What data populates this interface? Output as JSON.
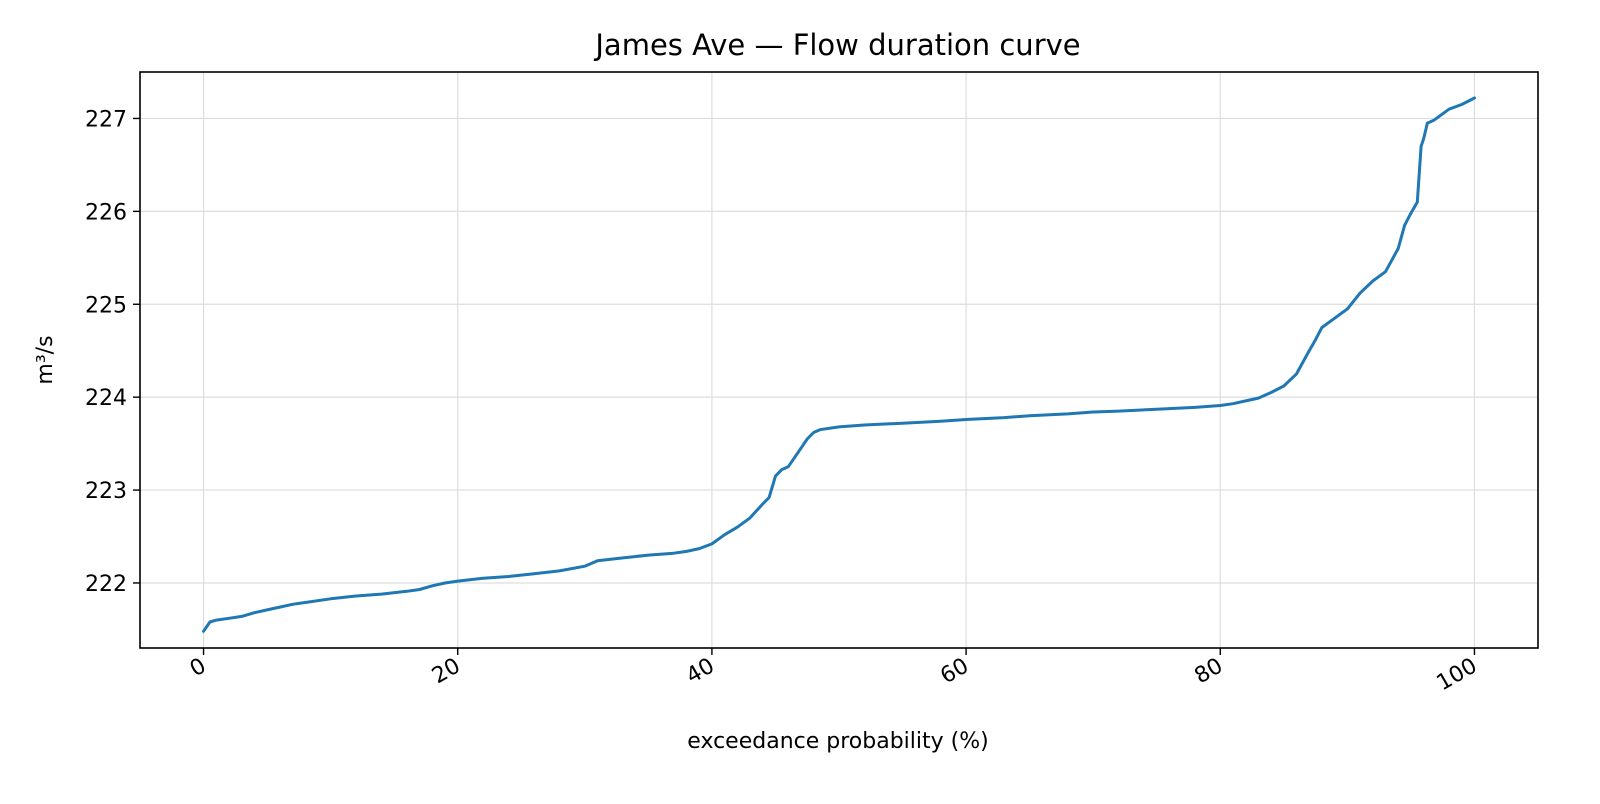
{
  "chart_data": {
    "type": "line",
    "title": "James Ave — Flow duration curve",
    "xlabel": "exceedance probability (%)",
    "ylabel": "m³/s",
    "xlim": [
      -5,
      105
    ],
    "ylim": [
      221.3,
      227.5
    ],
    "x_ticks": [
      0,
      20,
      40,
      60,
      80,
      100
    ],
    "x_tick_labels": [
      "0",
      "20",
      "40",
      "60",
      "80",
      "100"
    ],
    "y_ticks": [
      222,
      223,
      224,
      225,
      226,
      227
    ],
    "y_tick_labels": [
      "222",
      "223",
      "224",
      "225",
      "226",
      "227"
    ],
    "grid": true,
    "series": [
      {
        "color": "#1f77b4",
        "x": [
          0,
          0.5,
          1,
          2,
          3,
          4,
          5,
          6,
          7,
          8,
          10,
          12,
          14,
          16,
          17,
          18,
          19,
          20,
          22,
          24,
          26,
          28,
          30,
          31,
          33,
          35,
          37,
          38,
          39,
          40,
          41,
          42,
          43,
          44,
          44.5,
          45,
          45.5,
          46,
          47,
          47.5,
          48,
          48.5,
          50,
          52,
          55,
          58,
          60,
          63,
          65,
          68,
          70,
          72,
          75,
          78,
          80,
          81,
          82,
          83,
          84,
          85,
          86,
          87,
          87.5,
          88,
          89,
          90,
          91,
          92,
          93,
          94,
          94.5,
          95,
          95.5,
          95.8,
          96,
          96.3,
          96.8,
          97.5,
          98,
          99,
          100
        ],
        "values": [
          221.48,
          221.58,
          221.6,
          221.62,
          221.64,
          221.68,
          221.71,
          221.74,
          221.77,
          221.79,
          221.83,
          221.86,
          221.88,
          221.91,
          221.93,
          221.97,
          222.0,
          222.02,
          222.05,
          222.07,
          222.1,
          222.13,
          222.18,
          222.24,
          222.27,
          222.3,
          222.32,
          222.34,
          222.37,
          222.42,
          222.52,
          222.6,
          222.7,
          222.85,
          222.92,
          223.15,
          223.22,
          223.25,
          223.45,
          223.55,
          223.62,
          223.65,
          223.68,
          223.7,
          223.72,
          223.74,
          223.76,
          223.78,
          223.8,
          223.82,
          223.84,
          223.85,
          223.87,
          223.89,
          223.91,
          223.93,
          223.96,
          223.99,
          224.05,
          224.12,
          224.25,
          224.5,
          224.62,
          224.75,
          224.85,
          224.95,
          225.12,
          225.25,
          225.35,
          225.6,
          225.85,
          225.98,
          226.1,
          226.7,
          226.78,
          226.95,
          226.98,
          227.05,
          227.1,
          227.15,
          227.22
        ]
      }
    ]
  }
}
